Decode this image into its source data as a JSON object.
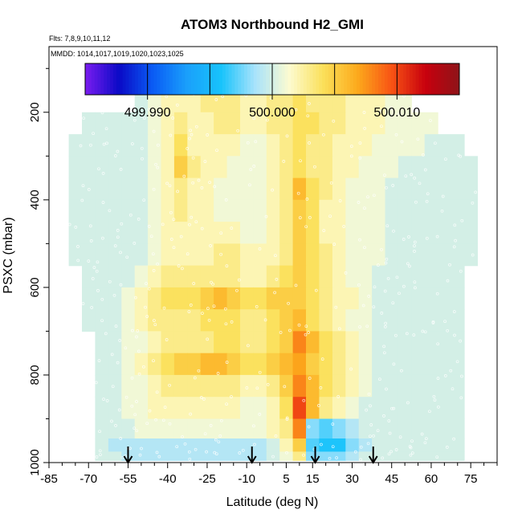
{
  "chart_data": {
    "type": "heatmap",
    "title": "ATOM3 Northbound H2_GMI",
    "flights_label": "Flts: 7,8,9,10,11,12",
    "dates_label": "MMDD: 1014,1017,1019,1020,1023,1025",
    "xlabel": "Latitude (deg N)",
    "ylabel": "PSXC (mbar)",
    "xlim": [
      -85,
      85
    ],
    "ylim": [
      1000,
      50
    ],
    "x_ticks": [
      -85,
      -70,
      -55,
      -40,
      -25,
      -10,
      5,
      15,
      30,
      45,
      60,
      75
    ],
    "y_ticks": [
      200,
      400,
      600,
      800,
      1000
    ],
    "colorbar": {
      "min": 499.985,
      "max": 500.015,
      "ticks": [
        499.99,
        500.0,
        500.01
      ],
      "tick_labels": [
        "499.990",
        "500.000",
        "500.010"
      ],
      "colors": [
        "#7a1cf0",
        "#0a0ac6",
        "#0a5cf5",
        "#1aa0fb",
        "#18c3fb",
        "#a9e3fb",
        "#fcfbd0",
        "#fbe05a",
        "#fcaa1c",
        "#f85414",
        "#c8000e",
        "#8e1418"
      ]
    },
    "flight_track_latitudes": [
      -55,
      -8,
      16,
      38
    ],
    "levels_mbar": [
      175,
      225,
      275,
      325,
      375,
      425,
      475,
      525,
      575,
      625,
      675,
      725,
      775,
      825,
      875,
      925,
      965,
      985
    ],
    "latitudes_deg": [
      -75,
      -70,
      -65,
      -60,
      -55,
      -50,
      -45,
      -40,
      -35,
      -30,
      -25,
      -20,
      -15,
      -10,
      -5,
      0,
      5,
      10,
      15,
      20,
      25,
      30,
      35,
      40,
      45,
      50,
      55,
      60,
      65,
      70,
      75
    ],
    "values_offset_1e6": [
      [
        null,
        null,
        null,
        null,
        null,
        0,
        1,
        2,
        2,
        2,
        3,
        3,
        3,
        2,
        2,
        3,
        3,
        4,
        3,
        3,
        3,
        2,
        2,
        2,
        1,
        1,
        null,
        null,
        null,
        null,
        null
      ],
      [
        null,
        0,
        0,
        0,
        0,
        0,
        1,
        2,
        3,
        2,
        2,
        3,
        3,
        2,
        2,
        3,
        3,
        4,
        4,
        3,
        3,
        2,
        2,
        2,
        1,
        1,
        1,
        1,
        null,
        null,
        null
      ],
      [
        0,
        0,
        0,
        0,
        0,
        0,
        1,
        2,
        4,
        2,
        2,
        2,
        2,
        1,
        1,
        2,
        3,
        4,
        3,
        3,
        2,
        2,
        2,
        1,
        1,
        1,
        1,
        0,
        0,
        0,
        null
      ],
      [
        0,
        0,
        0,
        0,
        0,
        0,
        1,
        2,
        5,
        3,
        2,
        2,
        1,
        1,
        1,
        2,
        3,
        4,
        3,
        3,
        2,
        2,
        1,
        1,
        1,
        0,
        0,
        0,
        0,
        0,
        0
      ],
      [
        0,
        0,
        0,
        0,
        0,
        0,
        1,
        2,
        3,
        2,
        2,
        1,
        1,
        1,
        1,
        2,
        3,
        6,
        4,
        3,
        2,
        1,
        1,
        1,
        0,
        0,
        0,
        0,
        0,
        0,
        0
      ],
      [
        0,
        0,
        0,
        0,
        0,
        0,
        1,
        2,
        3,
        2,
        2,
        1,
        1,
        1,
        1,
        2,
        3,
        5,
        4,
        2,
        2,
        1,
        1,
        1,
        0,
        0,
        0,
        0,
        0,
        0,
        0
      ],
      [
        0,
        0,
        0,
        0,
        0,
        0,
        1,
        2,
        2,
        2,
        2,
        2,
        2,
        1,
        1,
        2,
        3,
        5,
        4,
        2,
        2,
        1,
        1,
        1,
        0,
        0,
        0,
        0,
        0,
        0,
        0
      ],
      [
        0,
        0,
        0,
        0,
        0,
        0,
        1,
        2,
        2,
        2,
        2,
        3,
        3,
        2,
        2,
        2,
        3,
        5,
        4,
        3,
        2,
        1,
        1,
        1,
        0,
        0,
        0,
        0,
        0,
        0,
        0
      ],
      [
        null,
        0,
        0,
        0,
        0,
        1,
        2,
        3,
        3,
        3,
        3,
        3,
        3,
        2,
        2,
        3,
        4,
        5,
        4,
        3,
        2,
        1,
        1,
        0,
        0,
        0,
        0,
        0,
        0,
        0,
        null
      ],
      [
        null,
        0,
        0,
        0,
        1,
        2,
        3,
        4,
        4,
        4,
        5,
        6,
        5,
        4,
        4,
        5,
        5,
        5,
        4,
        3,
        2,
        2,
        1,
        0,
        0,
        0,
        0,
        0,
        0,
        0,
        null
      ],
      [
        null,
        0,
        0,
        0,
        1,
        2,
        3,
        3,
        3,
        3,
        4,
        4,
        4,
        3,
        3,
        4,
        5,
        6,
        4,
        3,
        2,
        1,
        1,
        0,
        0,
        0,
        0,
        0,
        0,
        0,
        null
      ],
      [
        null,
        null,
        0,
        0,
        1,
        1,
        2,
        3,
        3,
        3,
        3,
        4,
        4,
        3,
        3,
        4,
        5,
        8,
        6,
        4,
        3,
        2,
        1,
        0,
        0,
        0,
        0,
        0,
        0,
        0,
        null
      ],
      [
        null,
        null,
        0,
        0,
        1,
        2,
        3,
        4,
        5,
        5,
        6,
        6,
        5,
        4,
        4,
        5,
        6,
        7,
        5,
        4,
        3,
        2,
        1,
        0,
        0,
        0,
        0,
        0,
        0,
        0,
        null
      ],
      [
        null,
        null,
        0,
        0,
        1,
        1,
        2,
        3,
        3,
        3,
        3,
        3,
        3,
        2,
        2,
        3,
        5,
        8,
        6,
        4,
        3,
        2,
        1,
        0,
        0,
        0,
        0,
        0,
        0,
        0,
        null
      ],
      [
        null,
        null,
        0,
        0,
        1,
        1,
        2,
        2,
        2,
        2,
        2,
        2,
        2,
        1,
        1,
        2,
        4,
        10,
        6,
        3,
        2,
        1,
        0,
        0,
        0,
        0,
        0,
        0,
        0,
        0,
        null
      ],
      [
        null,
        null,
        0,
        0,
        0,
        1,
        1,
        1,
        1,
        1,
        1,
        1,
        1,
        1,
        1,
        2,
        3,
        8,
        -2,
        -3,
        -2,
        -1,
        0,
        0,
        0,
        0,
        0,
        0,
        0,
        0,
        null
      ],
      [
        null,
        null,
        0,
        -1,
        -1,
        -1,
        -1,
        -1,
        -1,
        -1,
        -1,
        -1,
        -1,
        -1,
        -1,
        0,
        2,
        5,
        -3,
        -4,
        -4,
        -2,
        -1,
        0,
        0,
        0,
        0,
        0,
        0,
        0,
        null
      ],
      [
        null,
        null,
        0,
        0,
        -1,
        -1,
        -1,
        -1,
        -1,
        -1,
        -1,
        -1,
        -1,
        -1,
        -1,
        0,
        1,
        3,
        -2,
        -2,
        -2,
        -1,
        0,
        0,
        0,
        0,
        0,
        0,
        0,
        0,
        null
      ]
    ]
  }
}
